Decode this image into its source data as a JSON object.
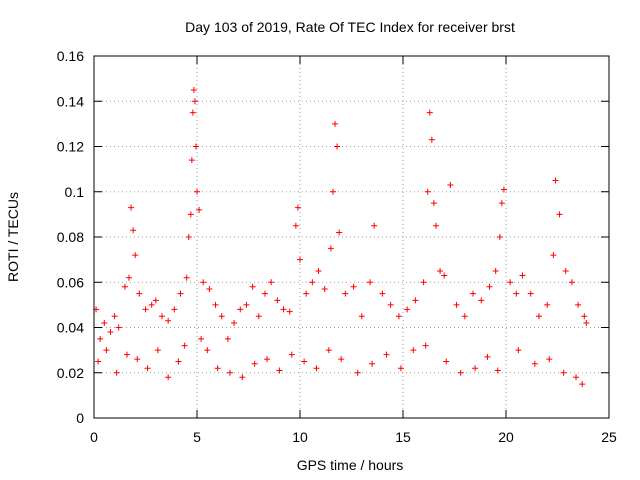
{
  "chart_data": {
    "type": "scatter",
    "title": "Day 103 of 2019, Rate Of TEC Index for receiver brst",
    "xlabel": "GPS time / hours",
    "ylabel": "ROTI / TECUs",
    "xlim": [
      0,
      25
    ],
    "ylim": [
      0,
      0.16
    ],
    "x_ticks": [
      0,
      5,
      10,
      15,
      20,
      25
    ],
    "x_tick_labels": [
      "0",
      "5",
      "10",
      "15",
      "20",
      "25"
    ],
    "y_ticks": [
      0,
      0.02,
      0.04,
      0.06,
      0.08,
      0.1,
      0.12,
      0.14,
      0.16
    ],
    "y_tick_labels": [
      "0",
      "0.02",
      "0.04",
      "0.06",
      "0.08",
      "0.1",
      "0.12",
      "0.14",
      "0.16"
    ],
    "grid": true,
    "marker": "+",
    "marker_color": "#ff0000",
    "series": [
      {
        "name": "ROTI",
        "x": [
          0.1,
          0.3,
          0.5,
          0.8,
          1.0,
          1.2,
          1.5,
          1.7,
          1.8,
          1.9,
          2.0,
          2.2,
          2.5,
          2.8,
          3.0,
          3.3,
          3.6,
          3.9,
          4.2,
          4.5,
          4.6,
          4.7,
          4.75,
          4.8,
          4.85,
          4.9,
          4.95,
          5.0,
          5.1,
          5.3,
          5.6,
          5.9,
          6.2,
          6.5,
          6.8,
          7.1,
          7.4,
          7.7,
          8.0,
          8.3,
          8.6,
          8.9,
          9.2,
          9.5,
          9.8,
          9.9,
          10.0,
          10.3,
          10.6,
          10.9,
          11.2,
          11.5,
          11.6,
          11.7,
          11.8,
          11.9,
          12.2,
          12.6,
          13.0,
          13.4,
          13.6,
          14.0,
          14.4,
          14.8,
          15.2,
          15.6,
          16.0,
          16.2,
          16.3,
          16.4,
          16.5,
          16.6,
          16.8,
          17.0,
          17.3,
          17.6,
          18.0,
          18.4,
          18.8,
          19.2,
          19.5,
          19.7,
          19.8,
          19.9,
          20.2,
          20.5,
          20.8,
          21.2,
          21.6,
          22.0,
          22.3,
          22.4,
          22.6,
          22.9,
          23.2,
          23.5,
          23.8,
          23.9,
          0.2,
          0.6,
          1.1,
          1.6,
          2.1,
          2.6,
          3.1,
          3.6,
          4.1,
          4.4,
          5.2,
          5.5,
          6.0,
          6.6,
          7.2,
          7.8,
          8.4,
          9.0,
          9.6,
          10.2,
          10.8,
          11.4,
          12.0,
          12.8,
          13.5,
          14.2,
          14.9,
          15.5,
          16.1,
          17.1,
          17.8,
          18.5,
          19.1,
          19.6,
          20.6,
          21.4,
          22.1,
          22.8,
          23.4,
          23.7
        ],
        "y": [
          0.048,
          0.035,
          0.042,
          0.038,
          0.045,
          0.04,
          0.058,
          0.062,
          0.093,
          0.083,
          0.072,
          0.055,
          0.048,
          0.05,
          0.052,
          0.045,
          0.043,
          0.048,
          0.055,
          0.062,
          0.08,
          0.09,
          0.114,
          0.135,
          0.145,
          0.14,
          0.12,
          0.1,
          0.092,
          0.06,
          0.057,
          0.05,
          0.045,
          0.035,
          0.042,
          0.048,
          0.05,
          0.058,
          0.045,
          0.055,
          0.06,
          0.052,
          0.048,
          0.047,
          0.085,
          0.093,
          0.07,
          0.055,
          0.06,
          0.065,
          0.057,
          0.075,
          0.1,
          0.13,
          0.12,
          0.082,
          0.055,
          0.058,
          0.045,
          0.06,
          0.085,
          0.055,
          0.05,
          0.045,
          0.048,
          0.052,
          0.06,
          0.1,
          0.135,
          0.123,
          0.095,
          0.085,
          0.065,
          0.063,
          0.103,
          0.05,
          0.045,
          0.055,
          0.052,
          0.058,
          0.065,
          0.08,
          0.095,
          0.101,
          0.06,
          0.055,
          0.063,
          0.055,
          0.045,
          0.05,
          0.072,
          0.105,
          0.09,
          0.065,
          0.06,
          0.05,
          0.045,
          0.042,
          0.025,
          0.03,
          0.02,
          0.028,
          0.026,
          0.022,
          0.03,
          0.018,
          0.025,
          0.032,
          0.035,
          0.03,
          0.022,
          0.02,
          0.018,
          0.024,
          0.026,
          0.021,
          0.028,
          0.025,
          0.022,
          0.03,
          0.026,
          0.02,
          0.024,
          0.028,
          0.022,
          0.03,
          0.032,
          0.025,
          0.02,
          0.022,
          0.027,
          0.021,
          0.03,
          0.024,
          0.026,
          0.02,
          0.018,
          0.015
        ]
      }
    ]
  }
}
